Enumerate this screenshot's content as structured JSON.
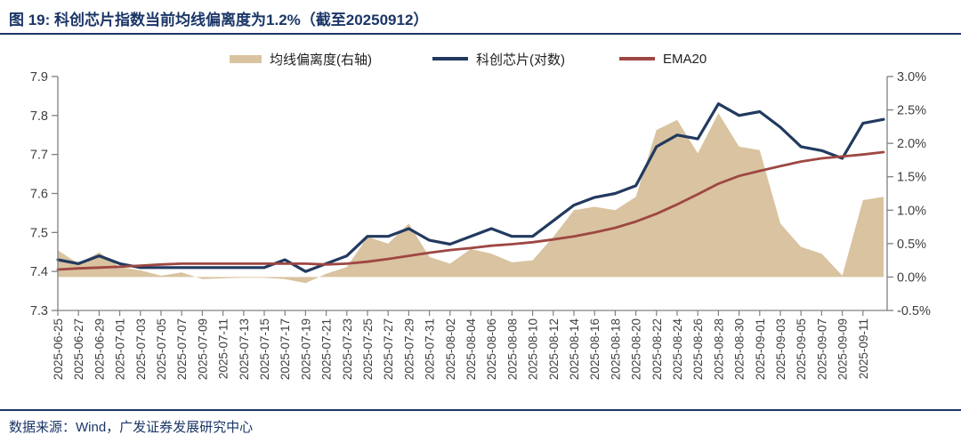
{
  "title": "图 19:  科创芯片指数当前均线偏离度为1.2%（截至20250912）",
  "footer": "数据来源：Wind，广发证券发展研究中心",
  "colors": {
    "title_navy": "#1b3667",
    "area_tan": "#d9c3a0",
    "index_navy": "#223a5f",
    "ema_red": "#9e4742",
    "axis_line": "#808080",
    "axis_text": "#404040"
  },
  "chart_data": {
    "type": "area",
    "combo": "area + 2 lines",
    "grid": false,
    "legend_position": "top-center",
    "x_labels": [
      "2025-06-25",
      "2025-06-27",
      "2025-06-29",
      "2025-07-01",
      "2025-07-03",
      "2025-07-05",
      "2025-07-07",
      "2025-07-09",
      "2025-07-11",
      "2025-07-13",
      "2025-07-15",
      "2025-07-17",
      "2025-07-19",
      "2025-07-21",
      "2025-07-23",
      "2025-07-25",
      "2025-07-27",
      "2025-07-29",
      "2025-07-31",
      "2025-08-02",
      "2025-08-04",
      "2025-08-06",
      "2025-08-08",
      "2025-08-10",
      "2025-08-12",
      "2025-08-14",
      "2025-08-16",
      "2025-08-18",
      "2025-08-20",
      "2025-08-22",
      "2025-08-24",
      "2025-08-26",
      "2025-08-28",
      "2025-08-30",
      "2025-09-01",
      "2025-09-03",
      "2025-09-05",
      "2025-09-07",
      "2025-09-09",
      "2025-09-11"
    ],
    "x": [
      "2025-06-25",
      "2025-06-27",
      "2025-06-29",
      "2025-07-01",
      "2025-07-03",
      "2025-07-05",
      "2025-07-07",
      "2025-07-09",
      "2025-07-11",
      "2025-07-13",
      "2025-07-15",
      "2025-07-17",
      "2025-07-19",
      "2025-07-21",
      "2025-07-23",
      "2025-07-25",
      "2025-07-27",
      "2025-07-29",
      "2025-07-31",
      "2025-08-02",
      "2025-08-04",
      "2025-08-06",
      "2025-08-08",
      "2025-08-10",
      "2025-08-12",
      "2025-08-14",
      "2025-08-16",
      "2025-08-18",
      "2025-08-20",
      "2025-08-22",
      "2025-08-24",
      "2025-08-26",
      "2025-08-28",
      "2025-08-30",
      "2025-09-01",
      "2025-09-03",
      "2025-09-05",
      "2025-09-07",
      "2025-09-09",
      "2025-09-11",
      "2025-09-12"
    ],
    "series": [
      {
        "name": "均线偏离度(右轴)",
        "type": "area",
        "axis": "right",
        "color": "#d9c3a0",
        "values": [
          0.4,
          0.2,
          0.37,
          0.15,
          0.1,
          0.02,
          0.07,
          -0.03,
          -0.02,
          -0.01,
          -0.01,
          -0.03,
          -0.09,
          0.05,
          0.15,
          0.6,
          0.5,
          0.8,
          0.3,
          0.2,
          0.42,
          0.35,
          0.22,
          0.25,
          0.6,
          1.0,
          1.05,
          1.0,
          1.2,
          2.2,
          2.35,
          1.85,
          2.45,
          1.95,
          1.9,
          0.8,
          0.45,
          0.35,
          0.02,
          1.15,
          1.2
        ]
      },
      {
        "name": "科创芯片(对数)",
        "type": "line",
        "axis": "left",
        "color": "#223a5f",
        "width": 3.2,
        "values": [
          7.43,
          7.42,
          7.44,
          7.42,
          7.41,
          7.41,
          7.41,
          7.41,
          7.41,
          7.41,
          7.41,
          7.43,
          7.4,
          7.42,
          7.44,
          7.49,
          7.49,
          7.51,
          7.48,
          7.47,
          7.49,
          7.51,
          7.49,
          7.49,
          7.53,
          7.57,
          7.59,
          7.6,
          7.62,
          7.72,
          7.75,
          7.74,
          7.83,
          7.8,
          7.81,
          7.77,
          7.72,
          7.71,
          7.69,
          7.78,
          7.79
        ]
      },
      {
        "name": "EMA20",
        "type": "line",
        "axis": "left",
        "color": "#9e4742",
        "width": 2.8,
        "values": [
          7.405,
          7.408,
          7.41,
          7.412,
          7.415,
          7.418,
          7.42,
          7.42,
          7.42,
          7.42,
          7.42,
          7.42,
          7.42,
          7.418,
          7.42,
          7.425,
          7.432,
          7.44,
          7.448,
          7.455,
          7.46,
          7.466,
          7.47,
          7.475,
          7.482,
          7.49,
          7.5,
          7.512,
          7.528,
          7.548,
          7.572,
          7.598,
          7.625,
          7.645,
          7.658,
          7.67,
          7.682,
          7.69,
          7.695,
          7.7,
          7.706
        ]
      }
    ],
    "left_axis": {
      "min": 7.3,
      "max": 7.9,
      "tick_step": 0.1,
      "tick_labels": [
        "7.9",
        "7.8",
        "7.7",
        "7.6",
        "7.5",
        "7.4",
        "7.3"
      ]
    },
    "right_axis": {
      "min": -0.5,
      "max": 3.0,
      "tick_step": 0.5,
      "tick_labels": [
        "3.0%",
        "2.5%",
        "2.0%",
        "1.5%",
        "1.0%",
        "0.5%",
        "0.0%",
        "-0.5%"
      ]
    }
  }
}
